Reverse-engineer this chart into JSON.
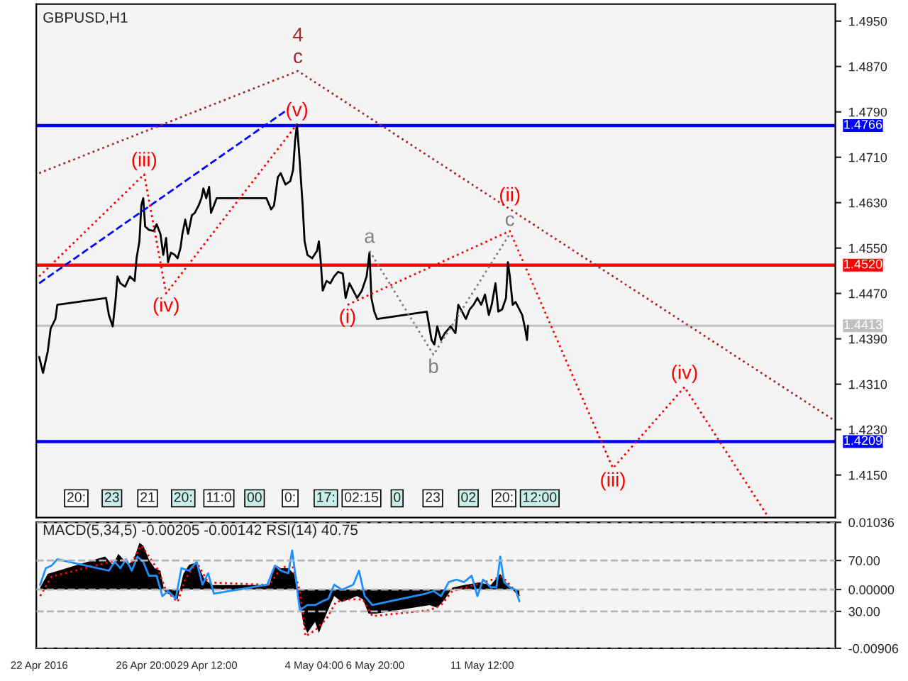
{
  "chart_data": [
    {
      "type": "line",
      "title": "GBPUSD,H1",
      "xlim": [
        "2016-04-22T01:00",
        "2016-05-26T22:00"
      ],
      "ylim": [
        1.4075,
        1.498
      ],
      "yticks": [
        {
          "value": 1.495,
          "label": "1.4950"
        },
        {
          "value": 1.487,
          "label": "1.4870"
        },
        {
          "value": 1.479,
          "label": "1.4790"
        },
        {
          "value": 1.471,
          "label": "1.4710"
        },
        {
          "value": 1.463,
          "label": "1.4630"
        },
        {
          "value": 1.455,
          "label": "1.4550"
        },
        {
          "value": 1.447,
          "label": "1.4470"
        },
        {
          "value": 1.439,
          "label": "1.4390"
        },
        {
          "value": 1.431,
          "label": "1.4310"
        },
        {
          "value": 1.423,
          "label": "1.4230"
        },
        {
          "value": 1.415,
          "label": "1.4150"
        }
      ],
      "tick_labels": "y",
      "series": [
        {
          "color": "#000000",
          "x": [
            "2016-04-22T04:00",
            "2016-04-22T08:00",
            "2016-04-22T13:00",
            "2016-04-22T16:00",
            "2016-04-22T21:00",
            "2016-04-22T23:00",
            "2016-04-25T02:00",
            "2016-04-25T05:00",
            "2016-04-25T09:00",
            "2016-04-25T12:00",
            "2016-04-25T14:00",
            "2016-04-25T17:00",
            "2016-04-25T22:00",
            "2016-04-26T03:00",
            "2016-04-26T08:00",
            "2016-04-26T10:00",
            "2016-04-26T13:00",
            "2016-04-26T15:00",
            "2016-04-26T17:00",
            "2016-04-26T19:00",
            "2016-04-26T23:00",
            "2016-04-27T04:00",
            "2016-04-27T07:00",
            "2016-04-27T11:00",
            "2016-04-27T14:00",
            "2016-04-27T17:00",
            "2016-04-27T19:00",
            "2016-04-27T22:00",
            "2016-04-28T02:00",
            "2016-04-28T05:00",
            "2016-04-28T08:00",
            "2016-04-28T10:00",
            "2016-04-28T13:00",
            "2016-04-28T16:00",
            "2016-04-28T20:00",
            "2016-04-28T23:00",
            "2016-04-29T03:00",
            "2016-04-29T06:00",
            "2016-04-29T08:00",
            "2016-04-29T11:00",
            "2016-04-29T14:00",
            "2016-04-29T16:00",
            "2016-04-29T19:00",
            "2016-04-29T22:00",
            "2016-05-02T02:00",
            "2016-05-02T07:00",
            "2016-05-02T10:00",
            "2016-05-02T14:00",
            "2016-05-02T17:00",
            "2016-05-02T22:00",
            "2016-05-03T03:00",
            "2016-05-03T06:00",
            "2016-05-03T08:00",
            "2016-05-03T10:00",
            "2016-05-03T12:00",
            "2016-05-03T14:00",
            "2016-05-03T16:00",
            "2016-05-03T18:00",
            "2016-05-03T21:00",
            "2016-05-04T02:00",
            "2016-05-04T07:00",
            "2016-05-04T09:00",
            "2016-05-04T11:00",
            "2016-05-04T13:00",
            "2016-05-04T17:00",
            "2016-05-04T21:00",
            "2016-05-05T01:00",
            "2016-05-05T05:00",
            "2016-05-05T10:00",
            "2016-05-05T13:00",
            "2016-05-05T17:00",
            "2016-05-05T21:00",
            "2016-05-06T01:00",
            "2016-05-06T06:00",
            "2016-05-06T11:00",
            "2016-05-06T14:00",
            "2016-05-06T16:00",
            "2016-05-06T19:00",
            "2016-05-06T22:00",
            "2016-05-09T02:00",
            "2016-05-09T05:00",
            "2016-05-09T07:00",
            "2016-05-09T10:00",
            "2016-05-09T13:00",
            "2016-05-09T17:00",
            "2016-05-09T21:00",
            "2016-05-10T03:00",
            "2016-05-10T08:00",
            "2016-05-10T11:00",
            "2016-05-10T15:00",
            "2016-05-10T19:00",
            "2016-05-10T23:00",
            "2016-05-11T03:00",
            "2016-05-11T07:00",
            "2016-05-11T11:00",
            "2016-05-11T15:00",
            "2016-05-11T19:00",
            "2016-05-11T22:00",
            "2016-05-12T02:00",
            "2016-05-12T05:00",
            "2016-05-12T09:00",
            "2016-05-12T13:00",
            "2016-05-12T15:00",
            "2016-05-12T17:00",
            "2016-05-12T20:00",
            "2016-05-12T23:00",
            "2016-05-13T03:00",
            "2016-05-13T06:00",
            "2016-05-13T09:00",
            "2016-05-13T11:00",
            "2016-05-13T12:00"
          ],
          "values": [
            1.4358,
            1.433,
            1.4368,
            1.4408,
            1.4425,
            1.445,
            1.4462,
            1.4432,
            1.4412,
            1.4458,
            1.45,
            1.4488,
            1.4482,
            1.45,
            1.4492,
            1.4532,
            1.4562,
            1.4625,
            1.4638,
            1.4588,
            1.4582,
            1.458,
            1.4592,
            1.4575,
            1.4538,
            1.4568,
            1.4525,
            1.4542,
            1.4538,
            1.4532,
            1.455,
            1.4575,
            1.46,
            1.4575,
            1.4608,
            1.4612,
            1.4625,
            1.4638,
            1.4655,
            1.4638,
            1.4658,
            1.4612,
            1.4625,
            1.4638,
            1.4638,
            1.4618,
            1.4625,
            1.4675,
            1.4682,
            1.4662,
            1.4668,
            1.4688,
            1.4738,
            1.4768,
            1.4725,
            1.4675,
            1.4625,
            1.4562,
            1.4538,
            1.4532,
            1.4545,
            1.4562,
            1.4525,
            1.4475,
            1.4492,
            1.4488,
            1.45,
            1.4508,
            1.4505,
            1.4462,
            1.4488,
            1.4475,
            1.4462,
            1.4475,
            1.45,
            1.4542,
            1.4462,
            1.4438,
            1.4425,
            1.4438,
            1.4408,
            1.4388,
            1.438,
            1.4412,
            1.4388,
            1.44,
            1.4412,
            1.44,
            1.445,
            1.4438,
            1.4425,
            1.4442,
            1.445,
            1.4462,
            1.445,
            1.4468,
            1.4432,
            1.445,
            1.4488,
            1.4438,
            1.4442,
            1.4462,
            1.4525,
            1.45,
            1.445,
            1.4455,
            1.4442,
            1.4432,
            1.4408,
            1.4388,
            1.4413
          ]
        },
        {
          "color": "#a52a2a",
          "line_style": "dotted",
          "x": [
            "2016-04-22T04:00",
            "2016-05-03T11:00",
            "2016-05-26T22:00"
          ],
          "values": [
            1.4682,
            1.4862,
            1.4245
          ]
        },
        {
          "color": "#0000ff",
          "line_style": "dashed",
          "x": [
            "2016-04-22T04:00",
            "2016-05-03T01:00"
          ],
          "values": [
            1.4488,
            1.4795
          ]
        },
        {
          "color": "#ff0000",
          "line_style": "dotted",
          "x": [
            "2016-04-22T04:00",
            "2016-04-26T18:00",
            "2016-04-27T17:00",
            "2016-05-03T10:00"
          ],
          "values": [
            1.45,
            1.468,
            1.447,
            1.4768
          ]
        },
        {
          "color": "#ff0000",
          "line_style": "dotted",
          "x": [
            "2016-05-05T15:00",
            "2016-05-12T17:00",
            "2016-05-17T05:00",
            "2016-05-20T08:00",
            "2016-05-24T00:00"
          ],
          "values": [
            1.445,
            1.458,
            1.4162,
            1.4305,
            1.4075
          ]
        },
        {
          "color": "#808080",
          "line_style": "dotted",
          "x": [
            "2016-05-06T14:00",
            "2016-05-09T09:00",
            "2016-05-12T17:00"
          ],
          "values": [
            1.4545,
            1.4362,
            1.4575
          ]
        }
      ],
      "ref_lines": [
        {
          "axis": "y",
          "value": 1.4766,
          "label": "1.4766",
          "color": "#0000ff"
        },
        {
          "axis": "y",
          "value": 1.452,
          "label": "1.4520",
          "color": "#ff0000"
        },
        {
          "axis": "y",
          "value": 1.4209,
          "label": "1.4209",
          "color": "#0000ff"
        },
        {
          "axis": "y",
          "value": 1.4413,
          "label": "1.4413",
          "color": "#c0c0c0"
        }
      ],
      "annotations": [
        {
          "text": "(v)",
          "x": "2016-05-03T10:00",
          "y": 1.4768
        },
        {
          "text": "c",
          "x": "2016-05-03T11:00",
          "y": 1.4862
        },
        {
          "text": "4",
          "x": "2016-05-03T11:00",
          "y": 1.4862
        },
        {
          "text": "(iii)",
          "x": "2016-04-26T18:00",
          "y": 1.468
        },
        {
          "text": "(iv)",
          "x": "2016-04-27T17:00",
          "y": 1.447
        },
        {
          "text": "(i)",
          "x": "2016-05-05T15:00",
          "y": 1.445
        },
        {
          "text": "a",
          "x": "2016-05-06T14:00",
          "y": 1.4545
        },
        {
          "text": "b",
          "x": "2016-05-09T09:00",
          "y": 1.4362
        },
        {
          "text": "c",
          "x": "2016-05-12T17:00",
          "y": 1.4575
        },
        {
          "text": "(ii)",
          "x": "2016-05-12T17:00",
          "y": 1.458
        },
        {
          "text": "(iii)",
          "x": "2016-05-17T05:00",
          "y": 1.4162
        },
        {
          "text": "(iv)",
          "x": "2016-05-20T08:00",
          "y": 1.4305
        },
        "20:",
        "23",
        "21",
        "20:",
        "11:0",
        "00",
        "0:",
        "17:",
        "02:15",
        "0",
        "23",
        "02",
        "20:",
        "12:00"
      ]
    },
    {
      "type": "area",
      "title": "MACD(5,34,5) -0.00205 -0.00142 RSI(14) 40.75",
      "xlim": [
        "2016-04-22T01:00",
        "2016-05-26T22:00"
      ],
      "xticks": [
        {
          "value": "2016-04-22T04:00",
          "label": "22 Apr 2016"
        },
        {
          "value": "2016-04-26T20:00",
          "label": "26 Apr 20:00"
        },
        {
          "value": "2016-04-29T12:00",
          "label": "29 Apr 12:00"
        },
        {
          "value": "2016-05-04T04:00",
          "label": "4 May 04:00"
        },
        {
          "value": "2016-05-06T20:00",
          "label": "6 May 20:00"
        },
        {
          "value": "2016-05-11T12:00",
          "label": "11 May 12:00"
        }
      ],
      "ylim": [
        -0.00906,
        0.01036
      ],
      "yticks": [
        {
          "value": 0.01036,
          "label": "0.01036"
        },
        {
          "value": 0,
          "label": "0.00000"
        },
        {
          "value": -0.00906,
          "label": "-0.00906"
        }
      ],
      "y2lim": [
        1,
        100
      ],
      "y2ticks": [
        {
          "value": 70,
          "label": "70.00"
        },
        {
          "value": 30,
          "label": "30.00"
        }
      ],
      "series": [
        {
          "color": "#000000",
          "x": [
            "2016-04-22T05:00",
            "2016-04-22T13:00",
            "2016-04-25T01:00",
            "2016-04-25T09:00",
            "2016-04-25T15:00",
            "2016-04-26T01:00",
            "2016-04-26T07:00",
            "2016-04-26T13:00",
            "2016-04-26T17:00",
            "2016-04-26T23:00",
            "2016-04-27T05:00",
            "2016-04-27T11:00",
            "2016-04-27T15:00",
            "2016-04-27T23:00",
            "2016-04-28T05:00",
            "2016-04-28T11:00",
            "2016-04-28T17:00",
            "2016-04-29T01:00",
            "2016-04-29T09:00",
            "2016-04-29T17:00",
            "2016-05-02T05:00",
            "2016-05-02T11:00",
            "2016-05-02T17:00",
            "2016-05-03T01:00",
            "2016-05-03T07:00",
            "2016-05-03T11:00",
            "2016-05-03T17:00",
            "2016-05-03T21:00",
            "2016-05-04T05:00",
            "2016-05-04T09:00",
            "2016-05-04T17:00",
            "2016-05-05T01:00",
            "2016-05-05T09:00",
            "2016-05-05T17:00",
            "2016-05-06T01:00",
            "2016-05-06T07:00",
            "2016-05-06T13:00",
            "2016-05-06T21:00",
            "2016-05-09T05:00",
            "2016-05-09T13:00",
            "2016-05-09T21:00",
            "2016-05-10T05:00",
            "2016-05-10T17:00",
            "2016-05-11T09:00",
            "2016-05-11T21:00",
            "2016-05-12T07:00",
            "2016-05-12T13:00",
            "2016-05-12T21:00",
            "2016-05-13T03:00"
          ],
          "values": [
            0.0003,
            0.0024,
            0.0051,
            0.0038,
            0.0055,
            0.0038,
            0.0046,
            0.0072,
            0.0068,
            0.0046,
            0.0033,
            0.0029,
            -0.0002,
            -0.001,
            -0.0015,
            0.0024,
            0.0038,
            0.0042,
            0.0016,
            0.0007,
            0.0007,
            0.0038,
            0.0033,
            0.0033,
            0.0024,
            -0.0006,
            -0.0054,
            -0.0067,
            -0.005,
            -0.0067,
            -0.0037,
            -0.001,
            -0.0019,
            -0.0015,
            -0.001,
            -0.0015,
            -0.0037,
            -0.0037,
            -0.0024,
            -0.0028,
            -0.0015,
            0.0003,
            0.0007,
            0.0011,
            0.0007,
            0.0024,
            0.0011,
            -0.0002,
            -0.001
          ]
        },
        {
          "type": "line",
          "color": "#ff0000",
          "line_style": "dotted",
          "x": [
            "2016-04-22T05:00",
            "2016-04-22T17:00",
            "2016-04-25T05:00",
            "2016-04-25T17:00",
            "2016-04-26T05:00",
            "2016-04-26T15:00",
            "2016-04-26T23:00",
            "2016-04-27T09:00",
            "2016-04-27T17:00",
            "2016-04-28T05:00",
            "2016-04-28T13:00",
            "2016-04-29T01:00",
            "2016-04-29T13:00",
            "2016-05-02T05:00",
            "2016-05-02T17:00",
            "2016-05-03T05:00",
            "2016-05-03T13:00",
            "2016-05-03T19:00",
            "2016-05-04T05:00",
            "2016-05-04T17:00",
            "2016-05-05T03:00",
            "2016-05-05T17:00",
            "2016-05-06T07:00",
            "2016-05-06T17:00",
            "2016-05-09T05:00",
            "2016-05-09T17:00",
            "2016-05-10T05:00",
            "2016-05-11T09:00",
            "2016-05-12T09:00",
            "2016-05-12T17:00",
            "2016-05-13T03:00"
          ],
          "values": [
            -0.001,
            0.002,
            0.0042,
            0.0046,
            0.0042,
            0.0068,
            0.0051,
            0.0029,
            -0.0002,
            -0.0019,
            0.0016,
            0.0042,
            0.0011,
            0.0007,
            0.0033,
            0.0038,
            -0.0002,
            -0.0072,
            -0.0063,
            -0.0045,
            -0.0019,
            -0.0015,
            -0.0015,
            -0.0041,
            -0.0032,
            -0.0024,
            -0.0002,
            0.0009,
            0.002,
            0.0007,
            -0.001
          ]
        },
        {
          "type": "line",
          "axis": "y2",
          "color": "#1e90ff",
          "x": [
            "2016-04-22T05:00",
            "2016-04-22T11:00",
            "2016-04-22T17:00",
            "2016-04-22T23:00",
            "2016-04-25T05:00",
            "2016-04-25T11:00",
            "2016-04-25T17:00",
            "2016-04-25T23:00",
            "2016-04-26T05:00",
            "2016-04-26T11:00",
            "2016-04-26T17:00",
            "2016-04-26T23:00",
            "2016-04-27T07:00",
            "2016-04-27T13:00",
            "2016-04-27T19:00",
            "2016-04-28T03:00",
            "2016-04-28T09:00",
            "2016-04-28T17:00",
            "2016-04-29T01:00",
            "2016-04-29T07:00",
            "2016-04-29T13:00",
            "2016-04-29T19:00",
            "2016-05-02T03:00",
            "2016-05-02T11:00",
            "2016-05-02T17:00",
            "2016-05-03T01:00",
            "2016-05-03T05:00",
            "2016-05-03T09:00",
            "2016-05-03T13:00",
            "2016-05-03T21:00",
            "2016-05-04T05:00",
            "2016-05-04T13:00",
            "2016-05-04T19:00",
            "2016-05-05T01:00",
            "2016-05-05T09:00",
            "2016-05-05T21:00",
            "2016-05-06T03:00",
            "2016-05-06T09:00",
            "2016-05-06T17:00",
            "2016-05-09T01:00",
            "2016-05-09T09:00",
            "2016-05-09T17:00",
            "2016-05-10T01:00",
            "2016-05-10T09:00",
            "2016-05-10T17:00",
            "2016-05-11T01:00",
            "2016-05-11T07:00",
            "2016-05-11T13:00",
            "2016-05-11T21:00",
            "2016-05-12T03:00",
            "2016-05-12T07:00",
            "2016-05-12T11:00",
            "2016-05-12T17:00",
            "2016-05-12T23:00",
            "2016-05-13T03:00"
          ],
          "values": [
            51,
            64,
            66,
            71,
            62,
            69,
            64,
            71,
            62,
            73,
            69,
            58,
            58,
            42,
            46,
            40,
            64,
            62,
            69,
            51,
            60,
            44,
            51,
            66,
            62,
            60,
            78,
            55,
            31,
            35,
            35,
            38,
            40,
            51,
            47,
            51,
            62,
            42,
            35,
            44,
            46,
            42,
            53,
            55,
            53,
            58,
            42,
            55,
            49,
            49,
            73,
            53,
            49,
            47,
            38
          ]
        }
      ],
      "grid": "y"
    }
  ]
}
